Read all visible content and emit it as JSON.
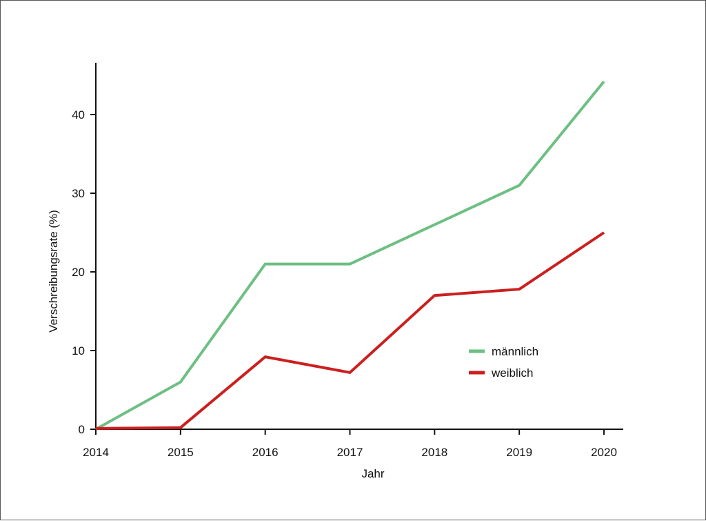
{
  "chart_data": {
    "type": "line",
    "xlabel": "Jahr",
    "ylabel": "Verschreibungsrate (%)",
    "x": [
      2014,
      2015,
      2016,
      2017,
      2018,
      2019,
      2020
    ],
    "ylim": [
      0,
      47
    ],
    "yticks": [
      0,
      10,
      20,
      30,
      40
    ],
    "grid": false,
    "legend_position": "right-center",
    "series": [
      {
        "name": "männlich",
        "color": "#6dbf82",
        "values": [
          0,
          6,
          21,
          21,
          26,
          31,
          44.2
        ]
      },
      {
        "name": "weiblich",
        "color": "#cc1f1f",
        "values": [
          0.1,
          0.2,
          9.2,
          7.2,
          17,
          17.8,
          25
        ]
      }
    ]
  }
}
